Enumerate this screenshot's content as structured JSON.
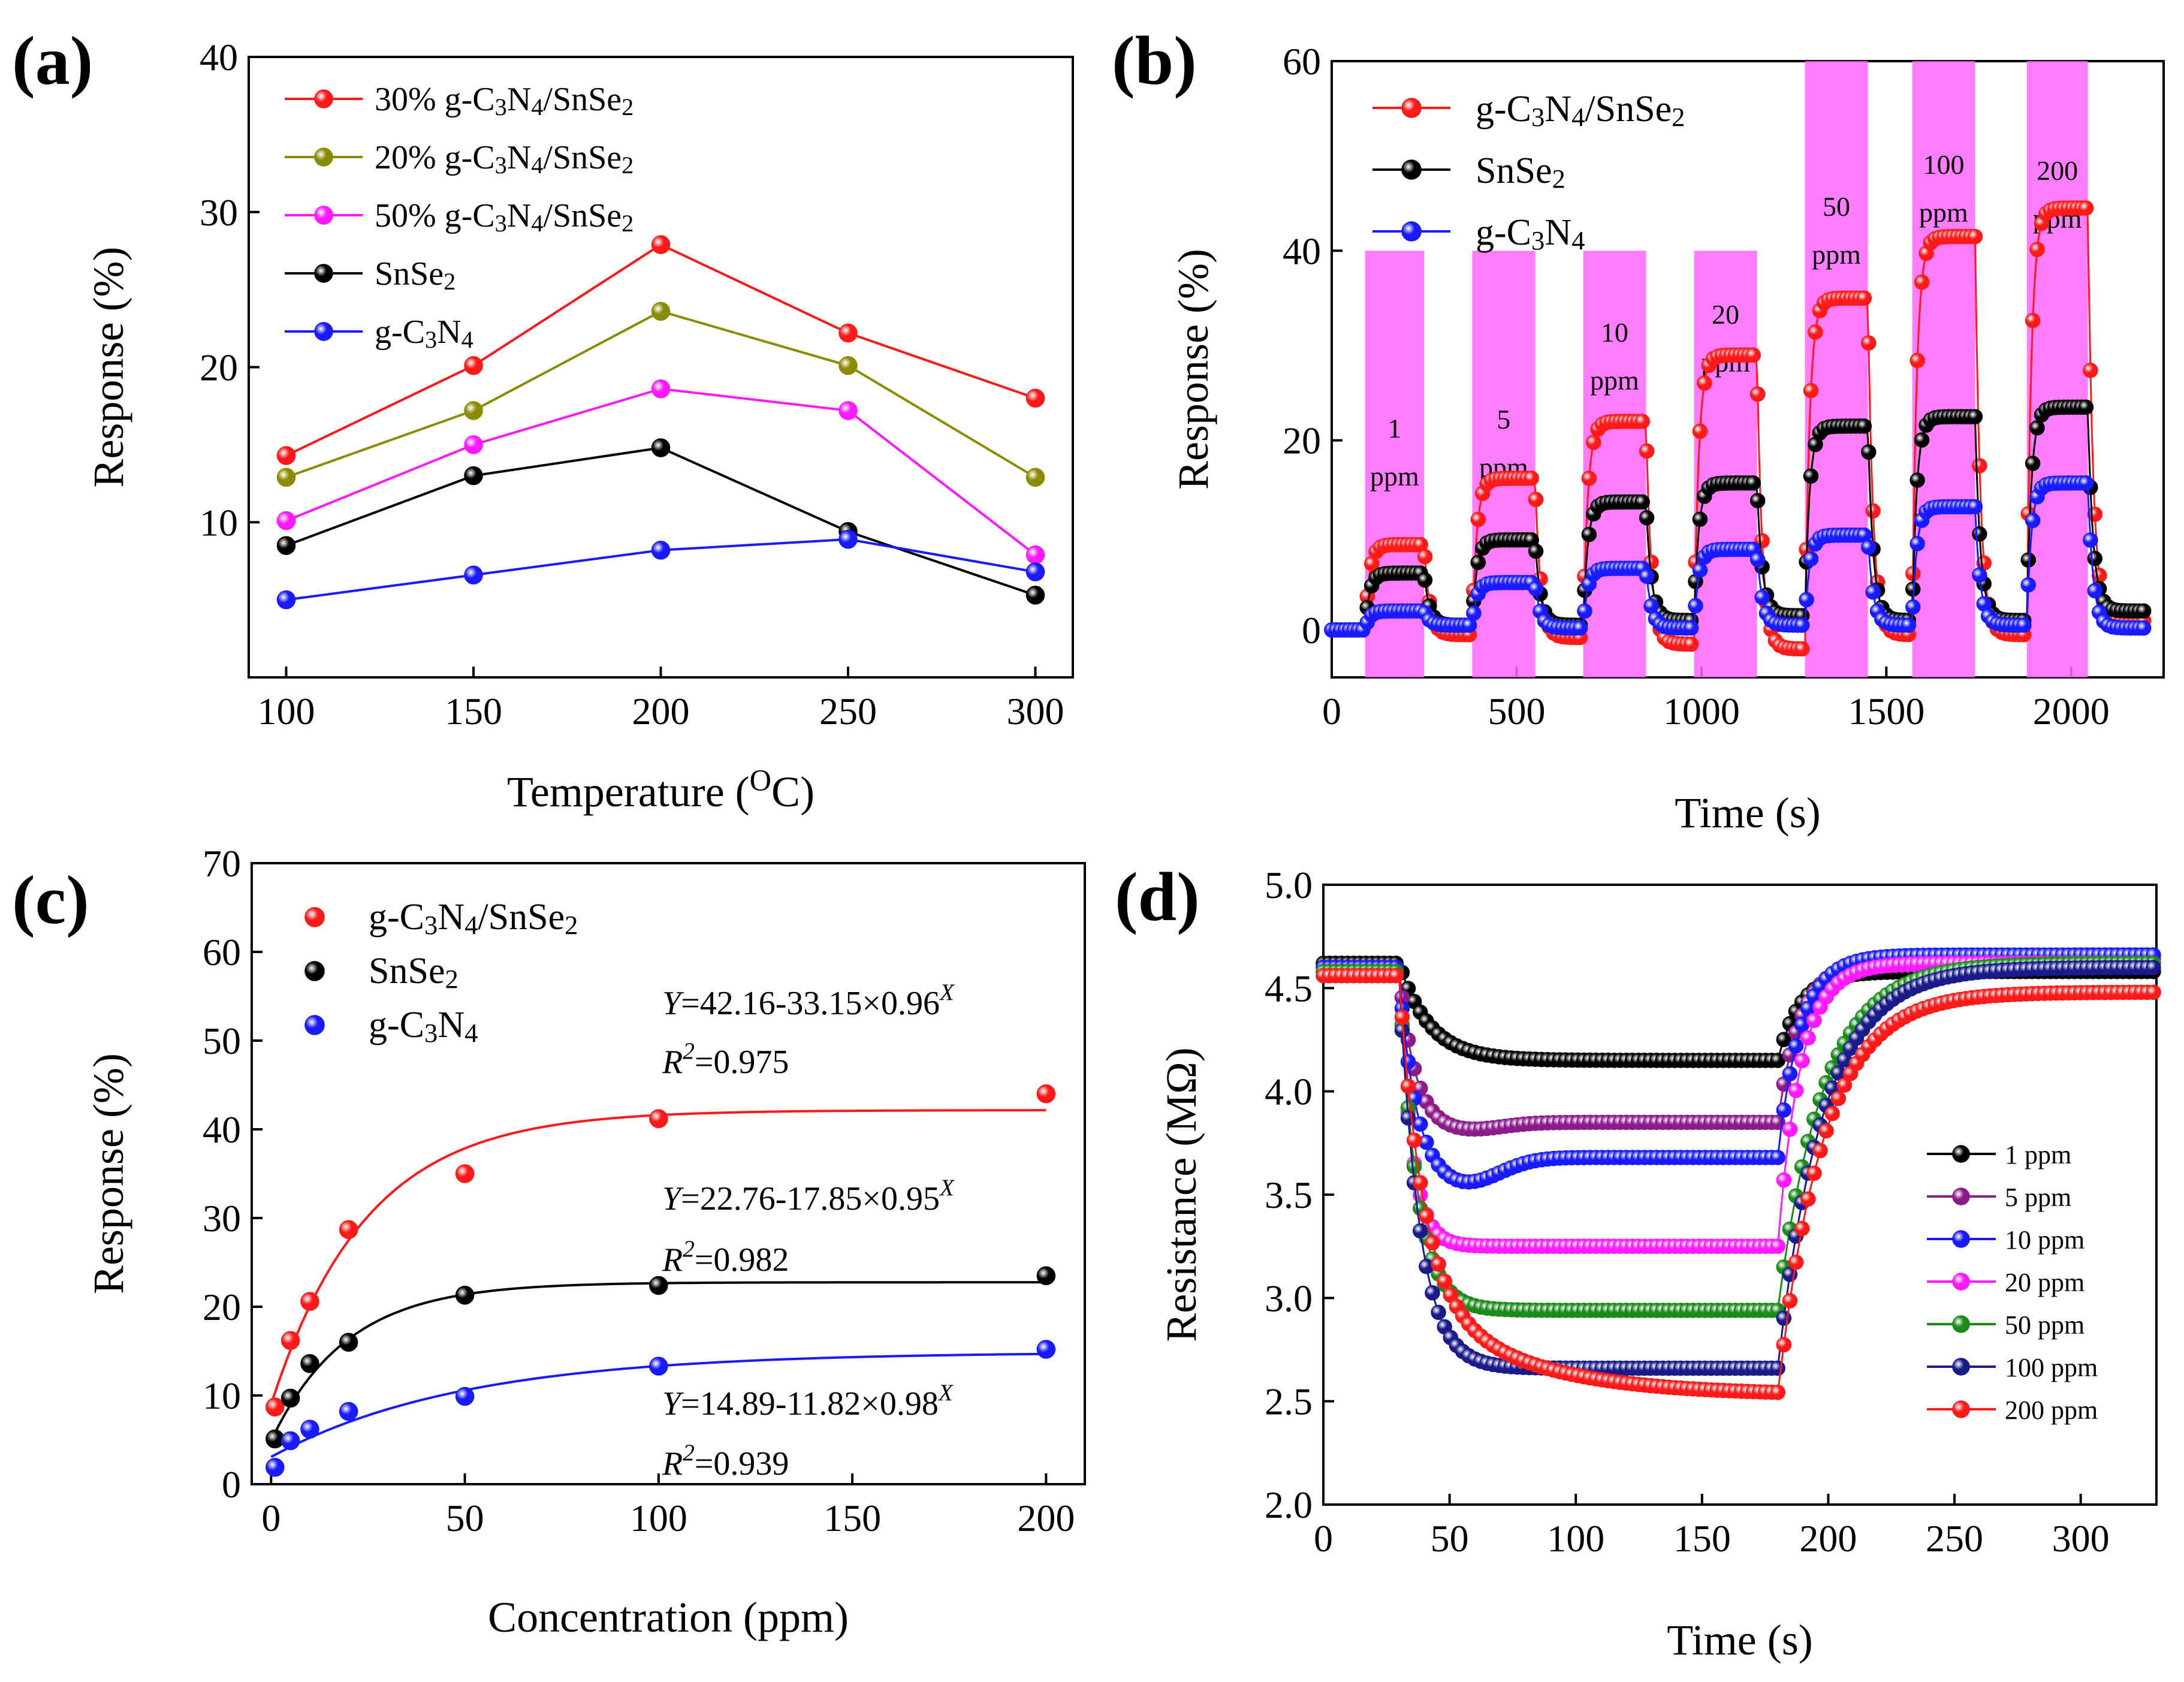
{
  "chart_data": [
    {
      "panel": "(a)",
      "type": "line",
      "xlabel_main": "Temperature (",
      "xlabel_sup": "O",
      "xlabel_tail": "C)",
      "ylabel": "Response (%)",
      "xlim": [
        90,
        310
      ],
      "ylim": [
        0,
        40
      ],
      "xticks": [
        100,
        150,
        200,
        250,
        300
      ],
      "yticks": [
        10,
        20,
        30,
        40
      ],
      "legend_position": "top-left",
      "series": [
        {
          "prefix": "30% g-C",
          "s1": "3",
          "m1": "N",
          "s2": "4",
          "m2": "/SnSe",
          "s3": "2",
          "color": "#ff1a1a",
          "x": [
            100,
            150,
            200,
            250,
            300
          ],
          "y": [
            14.3,
            20.1,
            27.9,
            22.2,
            18.0
          ]
        },
        {
          "prefix": "20% g-C",
          "s1": "3",
          "m1": "N",
          "s2": "4",
          "m2": "/SnSe",
          "s3": "2",
          "color": "#8b8b00",
          "x": [
            100,
            150,
            200,
            250,
            300
          ],
          "y": [
            12.9,
            17.2,
            23.6,
            20.1,
            12.9
          ]
        },
        {
          "prefix": "50% g-C",
          "s1": "3",
          "m1": "N",
          "s2": "4",
          "m2": "/SnSe",
          "s3": "2",
          "color": "#ff1aff",
          "x": [
            100,
            150,
            200,
            250,
            300
          ],
          "y": [
            10.1,
            15.0,
            18.6,
            17.2,
            7.9
          ]
        },
        {
          "prefix": "SnSe",
          "s1": "2",
          "m1": "",
          "s2": "",
          "m2": "",
          "s3": "",
          "color": "#000000",
          "x": [
            100,
            150,
            200,
            250,
            300
          ],
          "y": [
            8.5,
            13.0,
            14.8,
            9.4,
            5.3
          ]
        },
        {
          "prefix": "g-C",
          "s1": "3",
          "m1": "N",
          "s2": "4",
          "m2": "",
          "s3": "",
          "color": "#1a1aff",
          "x": [
            100,
            150,
            200,
            250,
            300
          ],
          "y": [
            5.0,
            6.6,
            8.2,
            8.9,
            6.8
          ]
        }
      ]
    },
    {
      "panel": "(b)",
      "type": "line",
      "xlabel": "Time (s)",
      "ylabel": "Response (%)",
      "xlim": [
        0,
        2250
      ],
      "ylim": [
        -5,
        60
      ],
      "xticks": [
        0,
        500,
        1000,
        1500,
        2000
      ],
      "yticks": [
        0,
        20,
        40,
        60
      ],
      "legend_position": "top-left",
      "highlight_color": "#ff66ff",
      "gas_pulses": [
        {
          "on": 90,
          "off": 250,
          "label1": "1",
          "label2": "ppm"
        },
        {
          "on": 380,
          "off": 550,
          "label1": "5",
          "label2": "ppm"
        },
        {
          "on": 680,
          "off": 850,
          "label1": "10",
          "label2": "ppm"
        },
        {
          "on": 980,
          "off": 1150,
          "label1": "20",
          "label2": "ppm"
        },
        {
          "on": 1280,
          "off": 1450,
          "label1": "50",
          "label2": "ppm"
        },
        {
          "on": 1570,
          "off": 1740,
          "label1": "100",
          "label2": "ppm"
        },
        {
          "on": 1880,
          "off": 2045,
          "label1": "200",
          "label2": "ppm"
        }
      ],
      "series": [
        {
          "prefix": "g-C",
          "s1": "3",
          "m1": "N",
          "s2": "4",
          "m2": "/SnSe",
          "s3": "2",
          "color": "#ff1a1a",
          "peaks": [
            9.0,
            16.0,
            22.0,
            29.0,
            35.0,
            41.5,
            44.5
          ],
          "recovery_baseline": [
            -0.5,
            -0.8,
            -1.5,
            -2.0,
            -0.5,
            -0.5,
            1.0
          ]
        },
        {
          "prefix": "SnSe",
          "s1": "2",
          "m1": "",
          "s2": "",
          "m2": "",
          "s3": "",
          "color": "#000000",
          "peaks": [
            6.0,
            9.5,
            13.5,
            15.5,
            21.5,
            22.5,
            23.5
          ],
          "recovery_baseline": [
            0.5,
            0.5,
            1.0,
            1.5,
            1.0,
            1.0,
            2.0
          ]
        },
        {
          "prefix": "g-C",
          "s1": "3",
          "m1": "N",
          "s2": "4",
          "m2": "",
          "s3": "",
          "color": "#1a1aff",
          "peaks": [
            2.0,
            5.0,
            6.5,
            8.5,
            10.0,
            13.0,
            15.5
          ],
          "recovery_baseline": [
            0.5,
            0.2,
            0.2,
            0.5,
            0.5,
            0.5,
            0.2
          ]
        }
      ]
    },
    {
      "panel": "(c)",
      "type": "scatter",
      "xlabel": "Concentration (ppm)",
      "ylabel": "Response (%)",
      "xlim": [
        -5,
        210
      ],
      "ylim": [
        0,
        70
      ],
      "xticks": [
        0,
        50,
        100,
        150,
        200
      ],
      "yticks": [
        0,
        10,
        20,
        30,
        40,
        50,
        60,
        70
      ],
      "legend_position": "top-left",
      "series": [
        {
          "prefix": "g-C",
          "s1": "3",
          "m1": "N",
          "s2": "4",
          "m2": "/SnSe",
          "s3": "2",
          "color": "#ff1a1a",
          "x": [
            1,
            5,
            10,
            20,
            50,
            100,
            200
          ],
          "y": [
            8.7,
            16.2,
            20.6,
            28.7,
            35.0,
            41.2,
            44.0
          ],
          "fit": {
            "a": 42.16,
            "b": 33.15,
            "c": 0.96
          },
          "eq_y": "Y",
          "eq_text": "=42.16-33.15×0.96",
          "eq_exp": "X",
          "r_text": "R",
          "r_exp": "2",
          "r_val": "=0.975"
        },
        {
          "prefix": "SnSe",
          "s1": "2",
          "m1": "",
          "s2": "",
          "m2": "",
          "s3": "",
          "color": "#000000",
          "x": [
            1,
            5,
            10,
            20,
            50,
            100,
            200
          ],
          "y": [
            5.1,
            9.7,
            13.6,
            16.0,
            21.3,
            22.4,
            23.5
          ],
          "fit": {
            "a": 22.76,
            "b": 17.85,
            "c": 0.95
          },
          "eq_y": "Y",
          "eq_text": "=22.76-17.85×0.95",
          "eq_exp": "X",
          "r_text": "R",
          "r_exp": "2",
          "r_val": "=0.982"
        },
        {
          "prefix": "g-C",
          "s1": "3",
          "m1": "N",
          "s2": "4",
          "m2": "",
          "s3": "",
          "color": "#1a1aff",
          "x": [
            1,
            5,
            10,
            20,
            50,
            100,
            200
          ],
          "y": [
            1.9,
            4.9,
            6.2,
            8.2,
            9.9,
            13.3,
            15.2
          ],
          "fit": {
            "a": 14.89,
            "b": 11.82,
            "c": 0.98
          },
          "eq_y": "Y",
          "eq_text": "=14.89-11.82×0.98",
          "eq_exp": "X",
          "r_text": "R",
          "r_exp": "2",
          "r_val": "=0.939"
        }
      ]
    },
    {
      "panel": "(d)",
      "type": "line",
      "xlabel": "Time (s)",
      "ylabel": "Resistance (MΩ)",
      "xlim": [
        0,
        330
      ],
      "ylim": [
        2.0,
        5.0
      ],
      "xticks": [
        0,
        50,
        100,
        150,
        200,
        250,
        300
      ],
      "yticks": [
        2.0,
        2.5,
        3.0,
        3.5,
        4.0,
        4.5,
        5.0
      ],
      "legend_position": "right",
      "series": [
        {
          "name": "1 ppm",
          "color": "#000000",
          "start": 4.62,
          "plateau": 4.15,
          "end": 4.58,
          "dip": 0,
          "tau": 12
        },
        {
          "name": "5 ppm",
          "color": "#8b1a8b",
          "start": 4.6,
          "plateau": 3.85,
          "end": 4.64,
          "dip": 0.04,
          "tau": 6
        },
        {
          "name": "10 ppm",
          "color": "#1a1aff",
          "start": 4.6,
          "plateau": 3.68,
          "end": 4.66,
          "dip": 0.13,
          "tau": 6
        },
        {
          "name": "20 ppm",
          "color": "#ff1aff",
          "start": 4.58,
          "plateau": 3.25,
          "end": 4.62,
          "dip": 0,
          "tau": 5
        },
        {
          "name": "50 ppm",
          "color": "#1a8b1a",
          "start": 4.58,
          "plateau": 2.94,
          "end": 4.62,
          "dip": 0,
          "tau": 7
        },
        {
          "name": "100 ppm",
          "color": "#1a1a8b",
          "start": 4.56,
          "plateau": 2.66,
          "end": 4.6,
          "dip": 0,
          "tau": 8
        },
        {
          "name": "200 ppm",
          "color": "#ff1a1a",
          "start": 4.56,
          "plateau": 2.53,
          "end": 4.48,
          "dip": 0,
          "tau": 12
        }
      ]
    }
  ]
}
